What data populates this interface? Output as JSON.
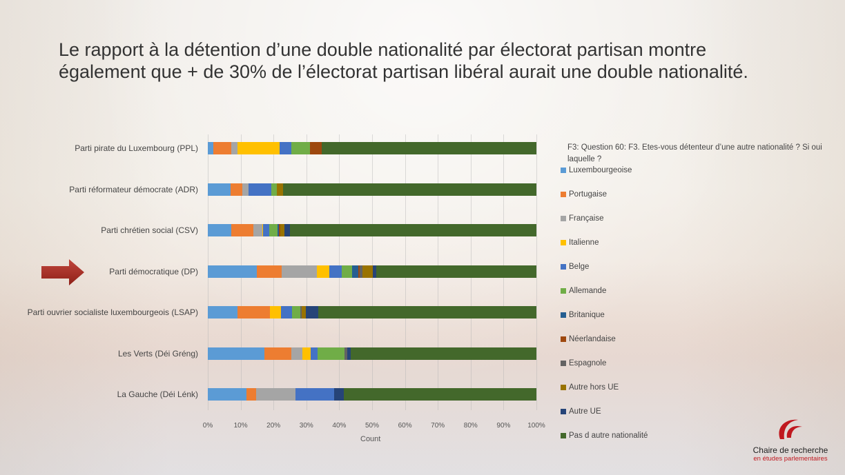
{
  "title": "Le rapport à la détention d’une double nationalité par électorat partisan montre également que + de 30% de l’électorat partisan libéral aurait une double nationalité.",
  "chart_data": {
    "type": "bar",
    "orientation": "horizontal",
    "stacked": "100%",
    "title": "",
    "xlabel": "Count",
    "ylabel": "",
    "xlim": [
      0,
      100
    ],
    "x_ticks": [
      "0%",
      "10%",
      "20%",
      "30%",
      "40%",
      "50%",
      "60%",
      "70%",
      "80%",
      "90%",
      "100%"
    ],
    "grid": true,
    "legend_position": "right",
    "legend_title": "F3: Question 60: F3. Etes-vous détenteur d’une autre nationalité ? Si oui laquelle ?",
    "categories": [
      "Parti pirate du Luxembourg (PPL)",
      "Parti réformateur démocrate (ADR)",
      "Parti chrétien social (CSV)",
      "Parti démocratique (DP)",
      "Parti ouvrier socialiste luxembourgeois (LSAP)",
      "Les Verts (Déi Gréng)",
      "La Gauche (Déi Lénk)"
    ],
    "series": [
      {
        "name": "Luxembourgeoise",
        "color": "#5b9bd5",
        "values": [
          1.7,
          6.9,
          7.2,
          15.0,
          9.1,
          17.2,
          11.7
        ]
      },
      {
        "name": "Portugaise",
        "color": "#ed7d31",
        "values": [
          5.5,
          3.5,
          6.6,
          7.5,
          9.9,
          8.2,
          3.0
        ]
      },
      {
        "name": "Française",
        "color": "#a5a5a5",
        "values": [
          1.8,
          1.9,
          2.7,
          10.8,
          0,
          3.4,
          12.0
        ]
      },
      {
        "name": "Italienne",
        "color": "#ffc000",
        "values": [
          12.8,
          0,
          0.4,
          3.7,
          3.2,
          2.4,
          0
        ]
      },
      {
        "name": "Belge",
        "color": "#4472c4",
        "values": [
          3.7,
          7.0,
          1.7,
          3.8,
          3.4,
          2.3,
          11.8
        ]
      },
      {
        "name": "Allemande",
        "color": "#70ad47",
        "values": [
          5.5,
          1.8,
          2.7,
          3.1,
          2.6,
          8.2,
          0
        ]
      },
      {
        "name": "Britanique",
        "color": "#255e91",
        "values": [
          0,
          0,
          0.3,
          1.9,
          0,
          0,
          0
        ]
      },
      {
        "name": "Néerlandaise",
        "color": "#9e480e",
        "values": [
          3.6,
          0,
          0.4,
          0.5,
          0,
          0,
          0
        ]
      },
      {
        "name": "Espagnole",
        "color": "#636363",
        "values": [
          0,
          0,
          0,
          0.8,
          0.4,
          0.8,
          0
        ]
      },
      {
        "name": "Autre hors UE",
        "color": "#997300",
        "values": [
          0,
          1.8,
          1.3,
          3.2,
          1.3,
          0,
          0
        ]
      },
      {
        "name": "Autre UE",
        "color": "#264478",
        "values": [
          0,
          0,
          1.7,
          1.1,
          3.8,
          0.9,
          2.9
        ]
      },
      {
        "name": "Pas d autre nationalité",
        "color": "#43682b",
        "values": [
          65.4,
          77.1,
          75.0,
          48.7,
          66.3,
          56.6,
          58.6
        ]
      }
    ],
    "highlighted_category": "Parti démocratique (DP)"
  },
  "logo": {
    "line1": "Chaire de recherche",
    "line2": "en études parlementaires"
  }
}
